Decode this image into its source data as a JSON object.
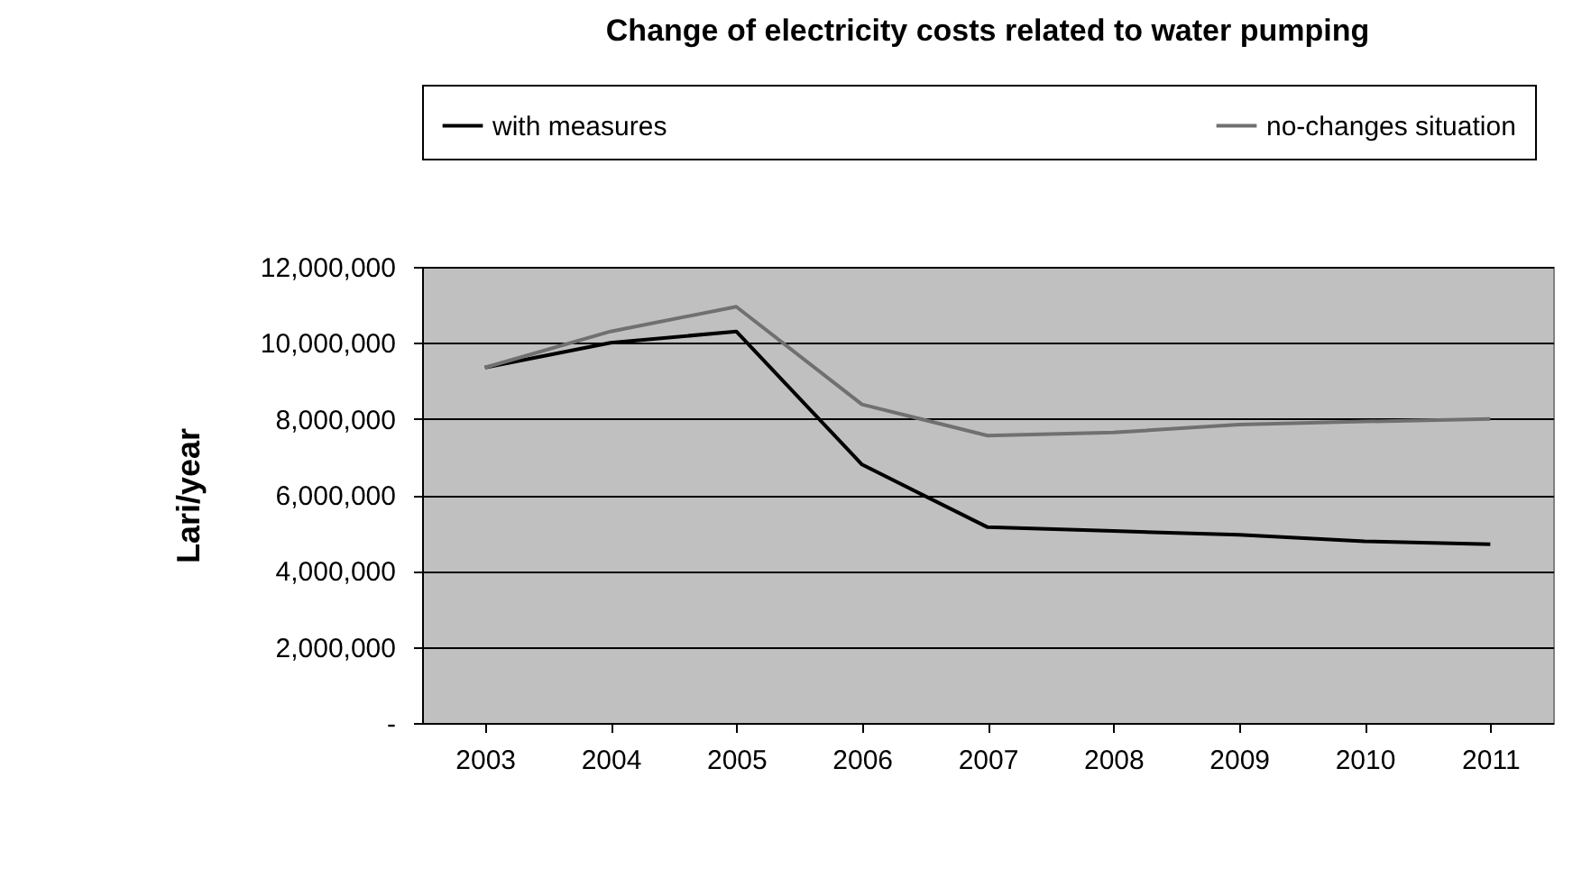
{
  "chart_data": {
    "type": "line",
    "title": "Change of electricity costs related to water pumping",
    "ylabel": "Lari/year",
    "categories": [
      "2003",
      "2004",
      "2005",
      "2006",
      "2007",
      "2008",
      "2009",
      "2010",
      "2011"
    ],
    "series": [
      {
        "name": "with measures",
        "color": "#000000",
        "values": [
          9350000,
          10000000,
          10300000,
          6800000,
          5150000,
          5050000,
          4950000,
          4780000,
          4700000
        ]
      },
      {
        "name": "no-changes situation",
        "color": "#707070",
        "values": [
          9350000,
          10300000,
          10950000,
          8380000,
          7560000,
          7640000,
          7850000,
          7930000,
          8000000
        ]
      }
    ],
    "ylim": [
      0,
      12000000
    ],
    "yticks": [
      {
        "value": 0,
        "label": "-"
      },
      {
        "value": 2000000,
        "label": "2,000,000"
      },
      {
        "value": 4000000,
        "label": "4,000,000"
      },
      {
        "value": 6000000,
        "label": "6,000,000"
      },
      {
        "value": 8000000,
        "label": "8,000,000"
      },
      {
        "value": 10000000,
        "label": "10,000,000"
      },
      {
        "value": 12000000,
        "label": "12,000,000"
      }
    ],
    "grid": "y",
    "legend": "top",
    "marker": "none",
    "line_style": "solid"
  }
}
